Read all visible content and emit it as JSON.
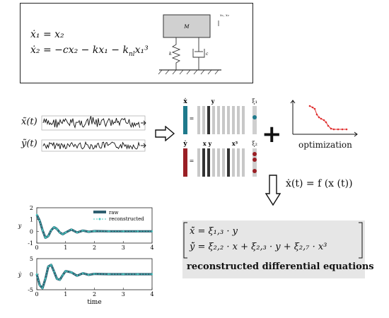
{
  "system": {
    "eq1": "ẋ₁ = x₂",
    "eq2": "ẋ₂ = −cx₂ − kx₁ − k",
    "eq2_sub": "nl",
    "eq2_tail": "x₁³",
    "mass_label": "M",
    "spring_label": "k",
    "damper_label": "c",
    "coord_label": "x₁, x₂"
  },
  "signals": {
    "x_label": "x̃(t)",
    "y_label": "ỹ(t)"
  },
  "library": {
    "xdot": "ẋ",
    "ydot": "ẏ",
    "eq_sign": "=",
    "col_y": "y",
    "col_xy": "x y",
    "col_x3": "x³",
    "xi1": "ξ₁",
    "xi2": "ξ₂"
  },
  "plus": "+",
  "optimization_label": "optimization",
  "model_eq": "ẋ(t) = f (x (t))",
  "reconstructed": {
    "eq1": "x̃̇ = ξ₁,₃ · y",
    "eq2": "ỹ̇ = ξ₂,₂ · x + ξ₂,₃ · y + ξ₂,₇ · x³",
    "title": "reconstructed differential equations"
  },
  "chart_data": [
    {
      "type": "line",
      "ylabel": "y",
      "xlabel": "",
      "xlim": [
        0,
        4
      ],
      "ylim": [
        -1,
        2
      ],
      "yticks": [
        -1,
        0,
        1,
        2
      ],
      "xticks": [
        0,
        1,
        2,
        3,
        4
      ],
      "legend": [
        "raw",
        "reconstructed"
      ],
      "legend_placement": "top-right",
      "series": [
        {
          "name": "raw",
          "x": [
            0,
            0.1,
            0.2,
            0.3,
            0.4,
            0.5,
            0.6,
            0.7,
            0.8,
            0.9,
            1.0,
            1.2,
            1.4,
            1.6,
            1.8,
            2.0,
            2.5,
            3.0,
            3.5,
            4.0
          ],
          "values": [
            1.4,
            0.9,
            0.1,
            -0.55,
            -0.4,
            0.1,
            0.35,
            0.2,
            -0.1,
            -0.25,
            -0.1,
            0.15,
            -0.1,
            0.06,
            -0.04,
            0.02,
            0.0,
            0.0,
            0.0,
            0.0
          ]
        },
        {
          "name": "reconstructed",
          "x": [
            0,
            0.1,
            0.2,
            0.3,
            0.4,
            0.5,
            0.6,
            0.7,
            0.8,
            0.9,
            1.0,
            1.2,
            1.4,
            1.6,
            1.8,
            2.0,
            2.5,
            3.0,
            3.5,
            4.0
          ],
          "values": [
            1.4,
            0.9,
            0.1,
            -0.55,
            -0.4,
            0.1,
            0.35,
            0.2,
            -0.1,
            -0.25,
            -0.1,
            0.15,
            -0.1,
            0.06,
            -0.04,
            0.02,
            0.0,
            0.0,
            0.0,
            0.0
          ]
        }
      ]
    },
    {
      "type": "line",
      "ylabel": "ẏ",
      "xlabel": "time",
      "xlim": [
        0,
        4
      ],
      "ylim": [
        -5,
        5
      ],
      "yticks": [
        -5,
        0,
        5
      ],
      "xticks": [
        0,
        1,
        2,
        3,
        4
      ],
      "series": [
        {
          "name": "raw",
          "x": [
            0,
            0.1,
            0.2,
            0.3,
            0.4,
            0.5,
            0.6,
            0.7,
            0.8,
            0.9,
            1.0,
            1.2,
            1.4,
            1.6,
            1.8,
            2.0,
            2.5,
            3.0,
            3.5,
            4.0
          ],
          "values": [
            0,
            -3.5,
            -4.5,
            -1.5,
            2.5,
            3.0,
            0.8,
            -1.5,
            -1.8,
            -0.3,
            1.0,
            0.6,
            -0.5,
            0.3,
            -0.2,
            0.1,
            0.0,
            0.0,
            0.0,
            0.0
          ]
        },
        {
          "name": "reconstructed",
          "x": [
            0,
            0.1,
            0.2,
            0.3,
            0.4,
            0.5,
            0.6,
            0.7,
            0.8,
            0.9,
            1.0,
            1.2,
            1.4,
            1.6,
            1.8,
            2.0,
            2.5,
            3.0,
            3.5,
            4.0
          ],
          "values": [
            0,
            -3.5,
            -4.5,
            -1.5,
            2.5,
            3.0,
            0.8,
            -1.5,
            -1.8,
            -0.3,
            1.0,
            0.6,
            -0.5,
            0.3,
            -0.2,
            0.1,
            0.0,
            0.0,
            0.0,
            0.0
          ]
        }
      ]
    }
  ],
  "colors": {
    "raw": "#2f5f70",
    "reconstructed": "#48c8c0",
    "teal_bar": "#1f7a8c",
    "red_bar": "#9a1f25",
    "opt_curve": "#e03030"
  }
}
